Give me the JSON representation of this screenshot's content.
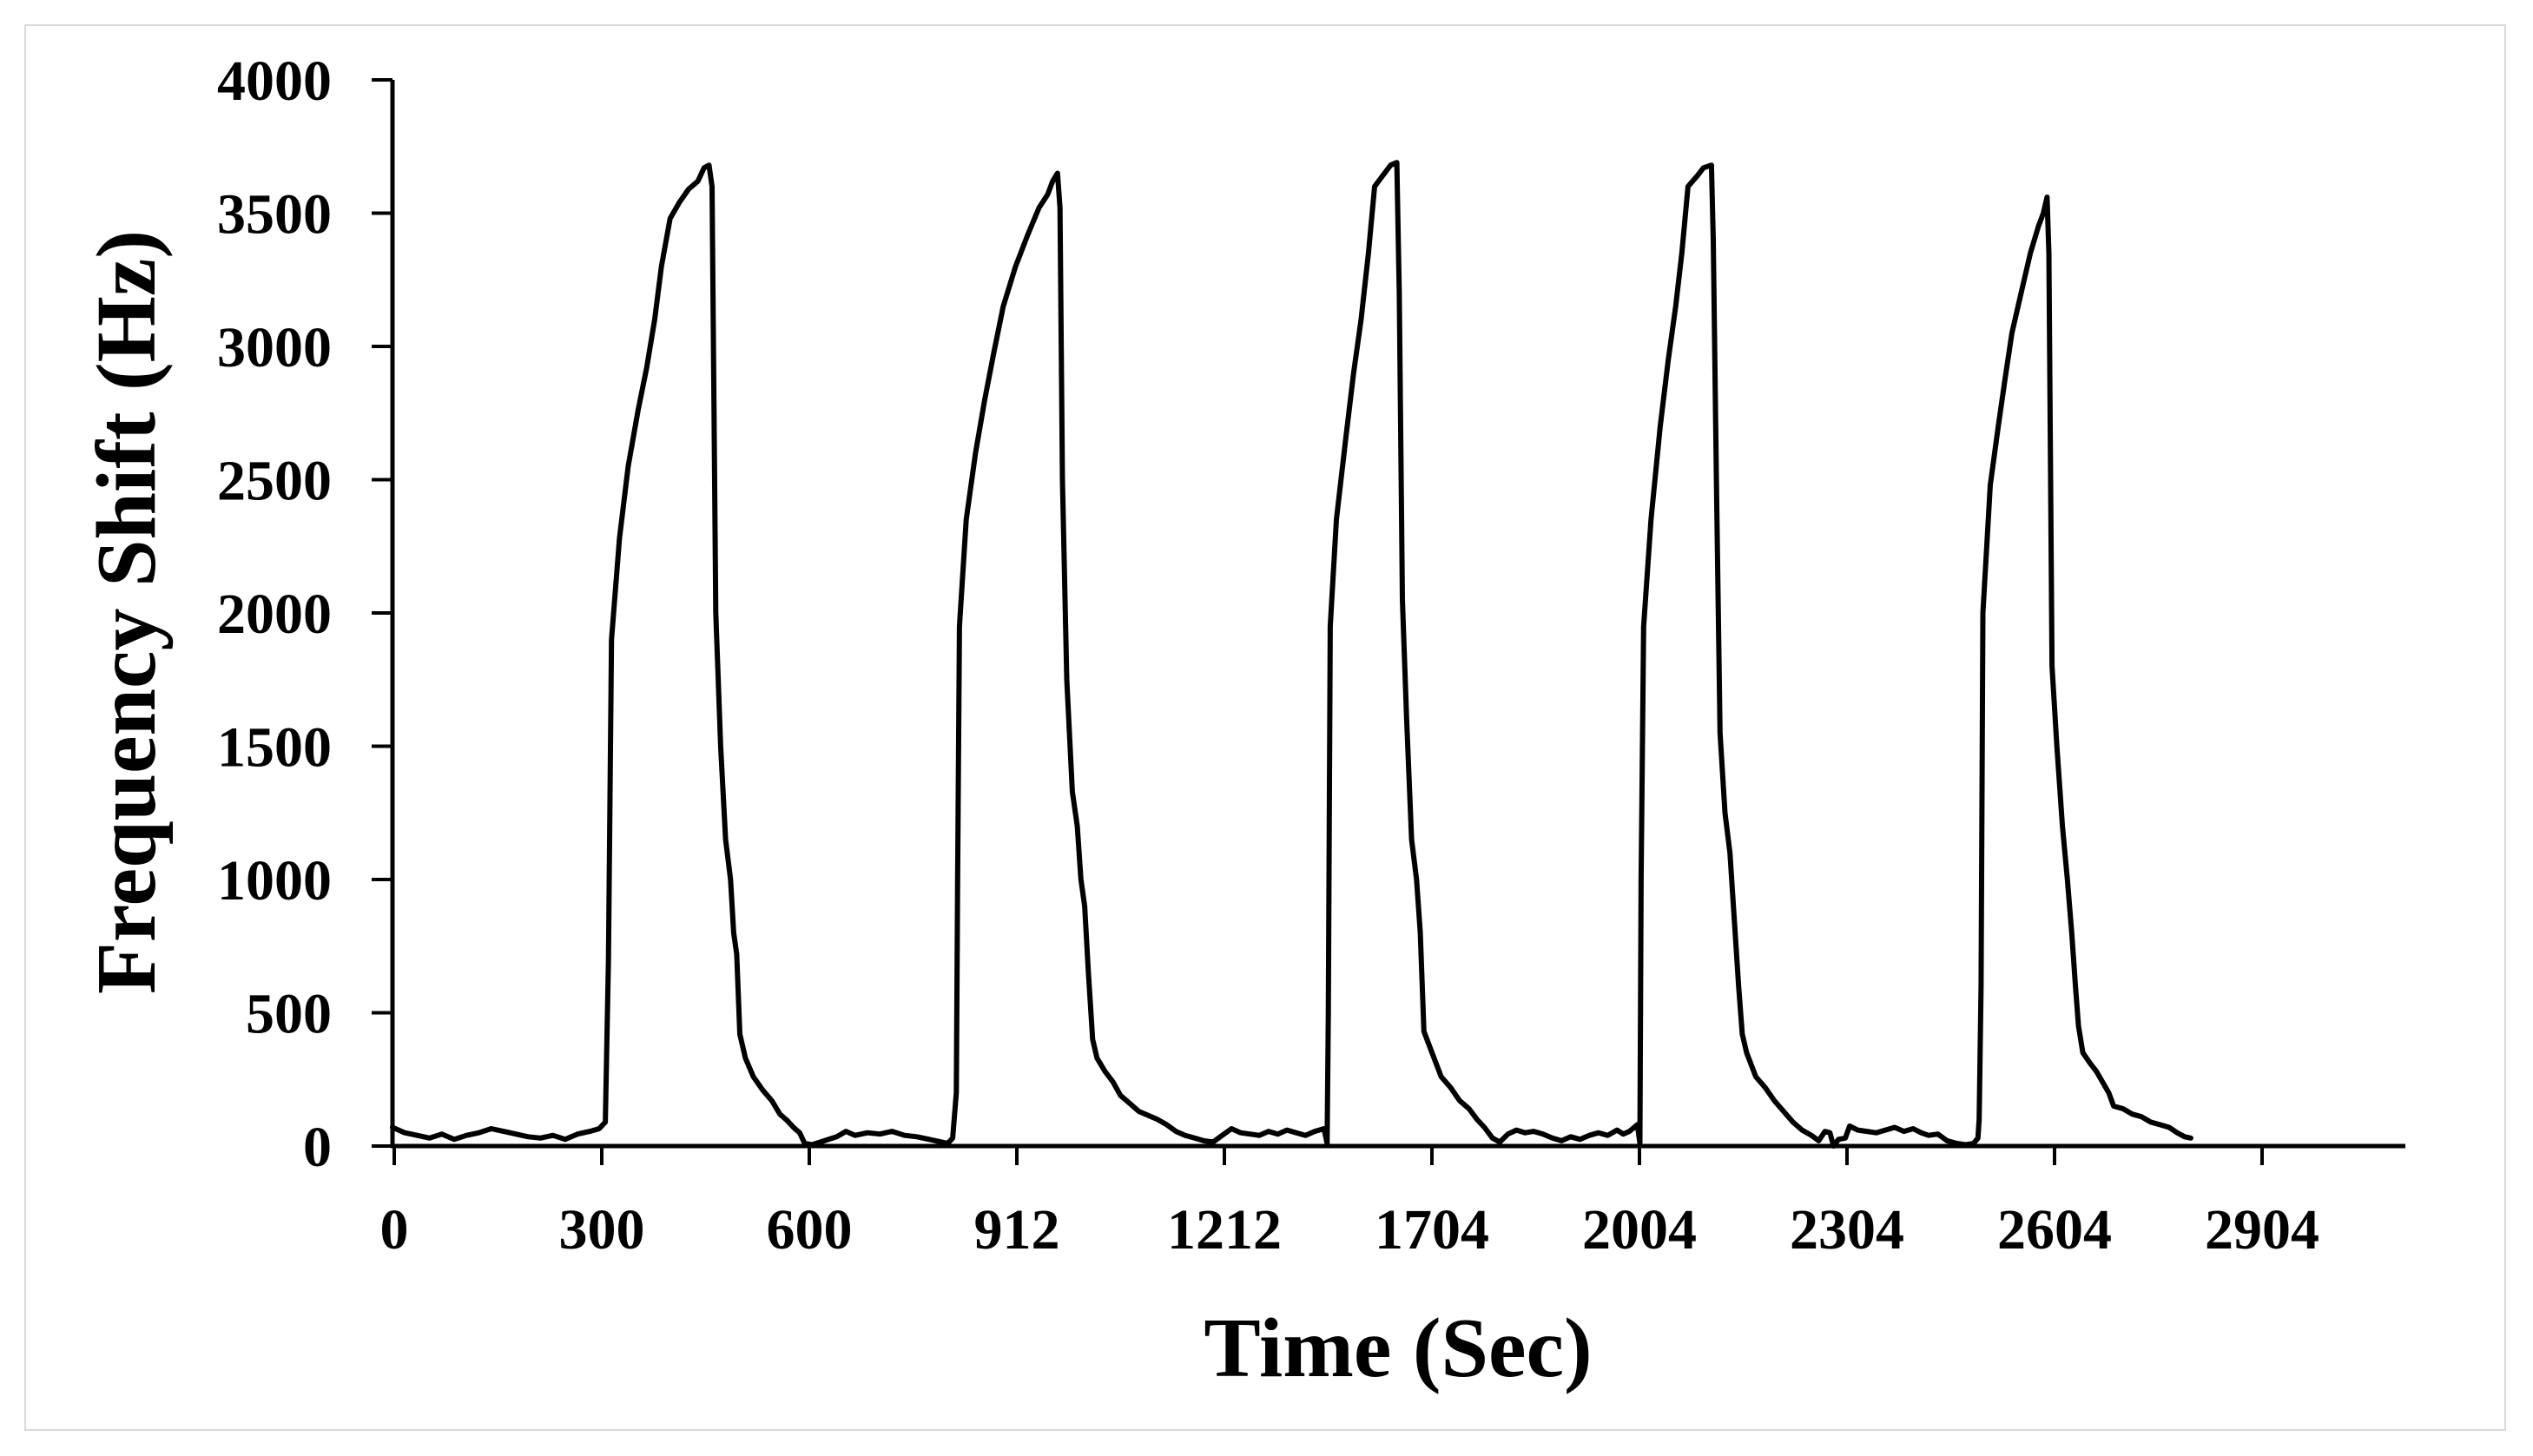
{
  "chart_data": {
    "type": "line",
    "title": "",
    "xlabel": "Time (Sec)",
    "ylabel": "Frequency Shift (Hz)",
    "xlim": [
      0,
      3260
    ],
    "ylim": [
      0,
      4000
    ],
    "grid": false,
    "line_color": "#000000",
    "y_ticks": [
      0,
      500,
      1000,
      1500,
      2000,
      2500,
      3000,
      3500,
      4000
    ],
    "x_tick_labels": [
      "0",
      "300",
      "600",
      "912",
      "1212",
      "1704",
      "2004",
      "2304",
      "2604",
      "2904"
    ],
    "series": [
      {
        "name": "Frequency Shift",
        "points": [
          [
            0,
            70
          ],
          [
            20,
            50
          ],
          [
            40,
            40
          ],
          [
            60,
            30
          ],
          [
            80,
            45
          ],
          [
            100,
            25
          ],
          [
            120,
            40
          ],
          [
            140,
            50
          ],
          [
            160,
            65
          ],
          [
            180,
            55
          ],
          [
            200,
            45
          ],
          [
            220,
            35
          ],
          [
            240,
            30
          ],
          [
            260,
            40
          ],
          [
            280,
            25
          ],
          [
            300,
            45
          ],
          [
            320,
            55
          ],
          [
            335,
            65
          ],
          [
            345,
            90
          ],
          [
            350,
            700
          ],
          [
            355,
            1900
          ],
          [
            368,
            2280
          ],
          [
            382,
            2550
          ],
          [
            398,
            2760
          ],
          [
            412,
            2920
          ],
          [
            425,
            3100
          ],
          [
            436,
            3300
          ],
          [
            450,
            3480
          ],
          [
            465,
            3540
          ],
          [
            480,
            3590
          ],
          [
            495,
            3620
          ],
          [
            505,
            3670
          ],
          [
            513,
            3680
          ],
          [
            518,
            3600
          ],
          [
            524,
            2000
          ],
          [
            532,
            1500
          ],
          [
            540,
            1150
          ],
          [
            548,
            1000
          ],
          [
            553,
            800
          ],
          [
            558,
            720
          ],
          [
            563,
            420
          ],
          [
            572,
            330
          ],
          [
            585,
            260
          ],
          [
            600,
            210
          ],
          [
            615,
            170
          ],
          [
            628,
            120
          ],
          [
            640,
            95
          ],
          [
            650,
            70
          ],
          [
            660,
            50
          ],
          [
            668,
            10
          ],
          [
            680,
            5
          ],
          [
            700,
            20
          ],
          [
            720,
            35
          ],
          [
            735,
            55
          ],
          [
            750,
            40
          ],
          [
            770,
            50
          ],
          [
            790,
            45
          ],
          [
            810,
            55
          ],
          [
            830,
            40
          ],
          [
            850,
            35
          ],
          [
            870,
            25
          ],
          [
            890,
            15
          ],
          [
            900,
            10
          ],
          [
            908,
            30
          ],
          [
            914,
            200
          ],
          [
            916,
            1000
          ],
          [
            919,
            1950
          ],
          [
            930,
            2350
          ],
          [
            945,
            2600
          ],
          [
            960,
            2800
          ],
          [
            975,
            2980
          ],
          [
            990,
            3150
          ],
          [
            1010,
            3300
          ],
          [
            1030,
            3420
          ],
          [
            1048,
            3520
          ],
          [
            1062,
            3570
          ],
          [
            1070,
            3620
          ],
          [
            1078,
            3650
          ],
          [
            1082,
            3520
          ],
          [
            1086,
            2500
          ],
          [
            1093,
            1750
          ],
          [
            1102,
            1330
          ],
          [
            1110,
            1200
          ],
          [
            1116,
            1000
          ],
          [
            1122,
            900
          ],
          [
            1128,
            650
          ],
          [
            1135,
            400
          ],
          [
            1142,
            330
          ],
          [
            1155,
            280
          ],
          [
            1168,
            240
          ],
          [
            1180,
            190
          ],
          [
            1195,
            160
          ],
          [
            1210,
            130
          ],
          [
            1225,
            115
          ],
          [
            1240,
            100
          ],
          [
            1255,
            80
          ],
          [
            1270,
            55
          ],
          [
            1285,
            40
          ],
          [
            1300,
            30
          ],
          [
            1315,
            20
          ],
          [
            1330,
            15
          ],
          [
            1345,
            40
          ],
          [
            1360,
            65
          ],
          [
            1375,
            50
          ],
          [
            1390,
            45
          ],
          [
            1405,
            40
          ],
          [
            1420,
            55
          ],
          [
            1435,
            45
          ],
          [
            1450,
            60
          ],
          [
            1465,
            50
          ],
          [
            1480,
            40
          ],
          [
            1495,
            55
          ],
          [
            1510,
            65
          ],
          [
            1515,
            10
          ],
          [
            1517,
            500
          ],
          [
            1520,
            1950
          ],
          [
            1530,
            2350
          ],
          [
            1545,
            2650
          ],
          [
            1558,
            2900
          ],
          [
            1570,
            3100
          ],
          [
            1582,
            3350
          ],
          [
            1592,
            3600
          ],
          [
            1605,
            3640
          ],
          [
            1618,
            3680
          ],
          [
            1628,
            3690
          ],
          [
            1632,
            3200
          ],
          [
            1637,
            2050
          ],
          [
            1644,
            1600
          ],
          [
            1652,
            1150
          ],
          [
            1660,
            1000
          ],
          [
            1666,
            800
          ],
          [
            1672,
            430
          ],
          [
            1685,
            350
          ],
          [
            1700,
            260
          ],
          [
            1715,
            220
          ],
          [
            1730,
            170
          ],
          [
            1745,
            140
          ],
          [
            1758,
            100
          ],
          [
            1770,
            70
          ],
          [
            1783,
            30
          ],
          [
            1795,
            15
          ],
          [
            1808,
            45
          ],
          [
            1822,
            60
          ],
          [
            1836,
            50
          ],
          [
            1850,
            55
          ],
          [
            1865,
            45
          ],
          [
            1880,
            30
          ],
          [
            1895,
            20
          ],
          [
            1910,
            35
          ],
          [
            1925,
            25
          ],
          [
            1940,
            40
          ],
          [
            1955,
            50
          ],
          [
            1970,
            40
          ],
          [
            1985,
            60
          ],
          [
            1995,
            45
          ],
          [
            2005,
            55
          ],
          [
            2018,
            80
          ],
          [
            2022,
            10
          ],
          [
            2024,
            1000
          ],
          [
            2028,
            1950
          ],
          [
            2040,
            2350
          ],
          [
            2055,
            2700
          ],
          [
            2068,
            2950
          ],
          [
            2080,
            3150
          ],
          [
            2090,
            3350
          ],
          [
            2100,
            3600
          ],
          [
            2115,
            3640
          ],
          [
            2125,
            3670
          ],
          [
            2138,
            3680
          ],
          [
            2141,
            3400
          ],
          [
            2146,
            2500
          ],
          [
            2152,
            1550
          ],
          [
            2160,
            1250
          ],
          [
            2168,
            1100
          ],
          [
            2175,
            850
          ],
          [
            2182,
            600
          ],
          [
            2188,
            420
          ],
          [
            2195,
            350
          ],
          [
            2210,
            260
          ],
          [
            2225,
            220
          ],
          [
            2240,
            170
          ],
          [
            2255,
            130
          ],
          [
            2270,
            90
          ],
          [
            2285,
            60
          ],
          [
            2300,
            40
          ],
          [
            2312,
            20
          ],
          [
            2322,
            55
          ],
          [
            2330,
            50
          ],
          [
            2336,
            0
          ],
          [
            2344,
            25
          ],
          [
            2355,
            30
          ],
          [
            2362,
            75
          ],
          [
            2375,
            60
          ],
          [
            2390,
            55
          ],
          [
            2405,
            50
          ],
          [
            2420,
            60
          ],
          [
            2435,
            70
          ],
          [
            2450,
            55
          ],
          [
            2465,
            65
          ],
          [
            2478,
            50
          ],
          [
            2490,
            40
          ],
          [
            2505,
            45
          ],
          [
            2520,
            20
          ],
          [
            2535,
            10
          ],
          [
            2550,
            5
          ],
          [
            2563,
            10
          ],
          [
            2570,
            30
          ],
          [
            2572,
            100
          ],
          [
            2575,
            600
          ],
          [
            2578,
            2000
          ],
          [
            2590,
            2480
          ],
          [
            2603,
            2700
          ],
          [
            2614,
            2880
          ],
          [
            2625,
            3050
          ],
          [
            2640,
            3200
          ],
          [
            2655,
            3350
          ],
          [
            2668,
            3450
          ],
          [
            2676,
            3500
          ],
          [
            2682,
            3560
          ],
          [
            2685,
            3350
          ],
          [
            2690,
            1800
          ],
          [
            2698,
            1500
          ],
          [
            2707,
            1200
          ],
          [
            2715,
            1000
          ],
          [
            2722,
            800
          ],
          [
            2728,
            600
          ],
          [
            2733,
            450
          ],
          [
            2740,
            350
          ],
          [
            2752,
            310
          ],
          [
            2762,
            280
          ],
          [
            2772,
            240
          ],
          [
            2782,
            200
          ],
          [
            2790,
            150
          ],
          [
            2805,
            140
          ],
          [
            2820,
            120
          ],
          [
            2835,
            110
          ],
          [
            2850,
            90
          ],
          [
            2865,
            80
          ],
          [
            2880,
            70
          ],
          [
            2893,
            50
          ],
          [
            2905,
            35
          ],
          [
            2915,
            30
          ]
        ]
      }
    ]
  }
}
